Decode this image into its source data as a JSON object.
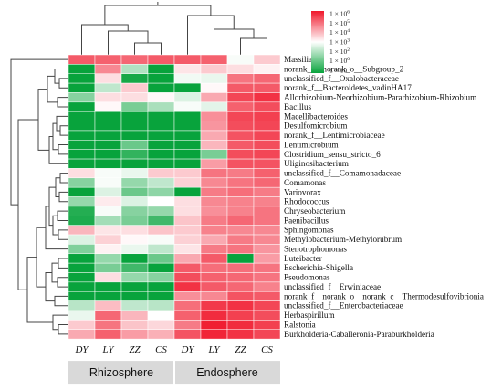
{
  "chart_data": {
    "type": "heatmap",
    "columns": [
      "DY",
      "LY",
      "ZZ",
      "CS",
      "DY",
      "LY",
      "ZZ",
      "CS"
    ],
    "groups": [
      {
        "name": "Rhizosphere",
        "span": [
          0,
          3
        ]
      },
      {
        "name": "Endosphere",
        "span": [
          4,
          7
        ]
      }
    ],
    "rows": [
      "Massilia",
      "norank_f__norank_o__Subgroup_2",
      "unclassified_f__Oxalobacteraceae",
      "norank_f__Bacteroidetes_vadinHA17",
      "Allorhizobium-Neorhizobium-Pararhizobium-Rhizobium",
      "Bacillus",
      "Macellibacteroides",
      "Desulfomicrobium",
      "norank_f__Lentimicrobiaceae",
      "Lentimicrobium",
      "Clostridium_sensu_stricto_6",
      "Uliginosibacterium",
      "unclassified_f__Comamonadaceae",
      "Comamonas",
      "Variovorax",
      "Rhodococcus",
      "Chryseobacterium",
      "Paenibacillus",
      "Sphingomonas",
      "Methylobacterium-Methylorubrum",
      "Stenotrophomonas",
      "Luteibacter",
      "Escherichia-Shigella",
      "Pseudomonas",
      "unclassified_f__Erwiniaceae",
      "norank_f__norank_o__norank_c__Thermodesulfovibrionia",
      "unclassified_f__Enterobacteriaceae",
      "Herbaspirillum",
      "Ralstonia",
      "Burkholderia-Caballeronia-Paraburkholderia"
    ],
    "log10_values": [
      [
        5.0,
        4.9,
        4.8,
        5.0,
        5.0,
        4.9,
        2.4,
        3.3
      ],
      [
        -1.0,
        4.3,
        1.4,
        -1.0,
        2.9,
        3.3,
        3.0,
        2.7
      ],
      [
        -1.0,
        3.0,
        -0.8,
        -1.0,
        2.3,
        2.2,
        4.6,
        4.8
      ],
      [
        -1.0,
        1.6,
        3.3,
        -1.0,
        -1.0,
        2.6,
        5.0,
        5.0
      ],
      [
        0.8,
        3.0,
        3.0,
        2.6,
        2.0,
        3.8,
        5.3,
        5.6
      ],
      [
        -1.0,
        2.6,
        0.6,
        1.3,
        2.4,
        2.1,
        4.9,
        5.2
      ],
      [
        -1.0,
        -1.0,
        -1.0,
        -1.0,
        -1.0,
        4.2,
        5.3,
        5.4
      ],
      [
        -1.0,
        -1.0,
        -1.0,
        -1.0,
        -1.0,
        4.1,
        5.2,
        5.3
      ],
      [
        -1.0,
        -1.0,
        -1.0,
        -1.0,
        -1.0,
        3.8,
        5.1,
        5.3
      ],
      [
        -1.0,
        -1.0,
        0.4,
        -1.0,
        -1.0,
        3.6,
        5.0,
        5.2
      ],
      [
        -1.0,
        -1.0,
        -0.4,
        -1.0,
        -1.0,
        0.6,
        5.2,
        5.3
      ],
      [
        -1.0,
        -1.0,
        -1.0,
        -1.0,
        -1.0,
        4.0,
        5.1,
        5.1
      ],
      [
        3.0,
        2.4,
        2.2,
        3.3,
        3.3,
        4.6,
        4.5,
        4.9
      ],
      [
        0.8,
        2.4,
        1.0,
        1.6,
        3.2,
        4.3,
        4.6,
        4.8
      ],
      [
        -1.0,
        2.0,
        0.4,
        0.9,
        -1.0,
        4.5,
        4.7,
        4.5
      ],
      [
        1.0,
        2.8,
        2.0,
        2.5,
        3.0,
        4.3,
        4.4,
        4.4
      ],
      [
        -0.6,
        2.4,
        0.8,
        1.0,
        3.0,
        4.2,
        4.4,
        4.6
      ],
      [
        -0.7,
        1.2,
        0.6,
        -0.2,
        3.4,
        4.5,
        4.8,
        4.6
      ],
      [
        3.6,
        2.9,
        3.0,
        3.4,
        3.3,
        4.4,
        4.3,
        4.3
      ],
      [
        2.0,
        3.2,
        2.6,
        2.4,
        3.2,
        3.8,
        4.5,
        4.3
      ],
      [
        0.7,
        2.7,
        2.2,
        1.6,
        2.9,
        4.5,
        4.6,
        4.1
      ],
      [
        -1.0,
        1.0,
        -1.0,
        0.4,
        3.8,
        5.0,
        -1.0,
        4.0
      ],
      [
        -1.0,
        0.6,
        -0.2,
        -1.0,
        5.0,
        4.7,
        4.7,
        4.6
      ],
      [
        -1.0,
        3.0,
        1.0,
        0.8,
        5.2,
        4.9,
        4.8,
        4.6
      ],
      [
        -1.0,
        -1.0,
        -1.0,
        -1.0,
        5.6,
        5.0,
        4.8,
        4.4
      ],
      [
        -1.0,
        -1.0,
        -1.0,
        -1.0,
        4.2,
        4.3,
        5.1,
        5.0
      ],
      [
        1.5,
        3.5,
        1.6,
        1.5,
        4.7,
        5.5,
        5.6,
        5.3
      ],
      [
        2.2,
        4.8,
        3.6,
        2.5,
        4.9,
        5.7,
        5.4,
        5.2
      ],
      [
        3.3,
        4.6,
        3.4,
        3.1,
        4.5,
        5.9,
        5.7,
        5.4
      ],
      [
        3.8,
        4.9,
        4.0,
        3.7,
        5.1,
        5.8,
        5.6,
        5.3
      ]
    ],
    "color_scale": {
      "min_log10": -1,
      "max_log10": 6,
      "low_color": "#08a33c",
      "mid_color": "#ffffff",
      "high_color": "#f0182c",
      "labels": [
        {
          "base": "1 × 10",
          "exp": "6"
        },
        {
          "base": "1 × 10",
          "exp": "5"
        },
        {
          "base": "1 × 10",
          "exp": "4"
        },
        {
          "base": "1 × 10",
          "exp": "3"
        },
        {
          "base": "1 × 10",
          "exp": "2"
        },
        {
          "base": "1 × 10",
          "exp": "0"
        },
        {
          "base": "1 × 10",
          "exp": "-1"
        }
      ]
    }
  }
}
